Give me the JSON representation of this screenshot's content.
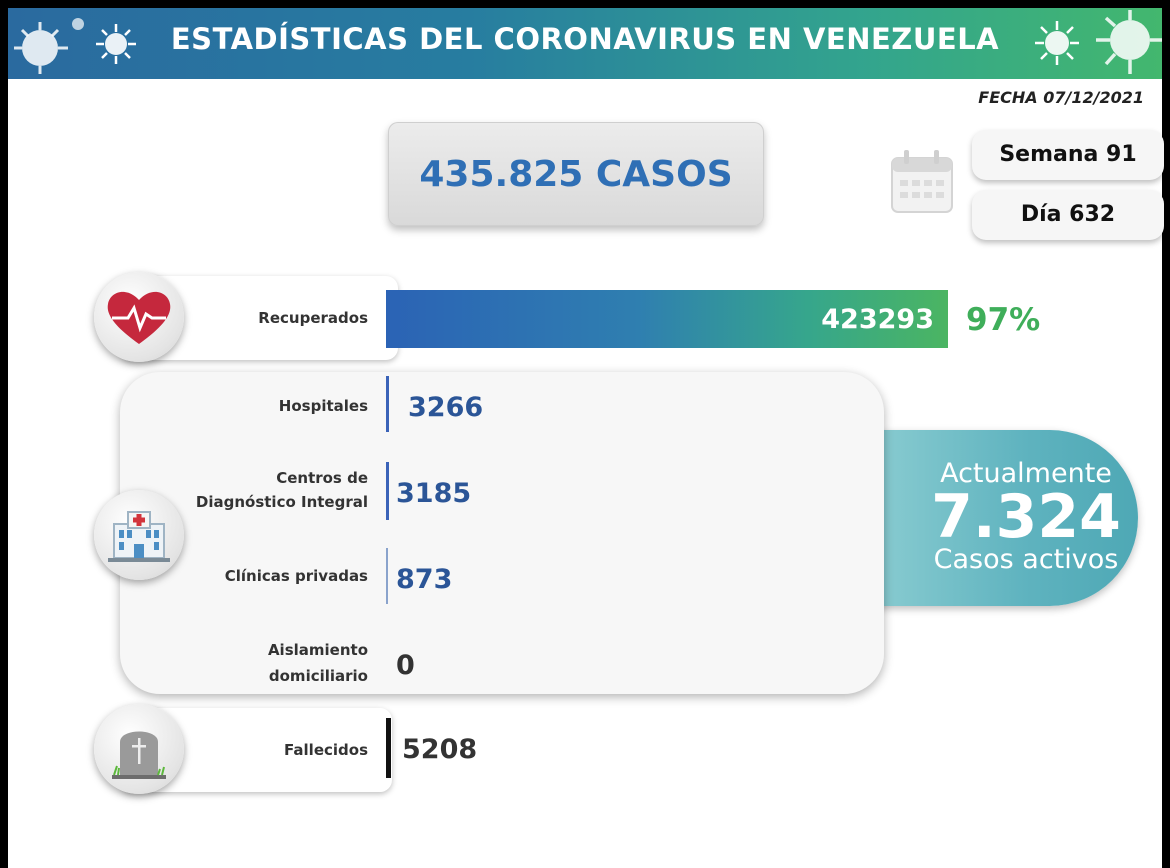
{
  "header": {
    "title": "ESTADÍSTICAS DEL CORONAVIRUS EN VENEZUELA"
  },
  "date": "FECHA 07/12/2021",
  "total": "435.825 CASOS",
  "week": "Semana 91",
  "day": "Día 632",
  "recovered": {
    "label": "Recuperados",
    "value": "423293",
    "percent": "97%"
  },
  "hospitals": {
    "label": "Hospitales",
    "value": "3266"
  },
  "cdi": {
    "label_line1": "Centros de",
    "label_line2": "Diagnóstico Integral",
    "value": "3185"
  },
  "private_clinics": {
    "label": "Clínicas privadas",
    "value": "873"
  },
  "home_isolation": {
    "label_line1": "Aislamiento",
    "label_line2": "domiciliario",
    "value": "0"
  },
  "deaths": {
    "label": "Fallecidos",
    "value": "5208"
  },
  "active": {
    "line1": "Actualmente",
    "value": "7.324",
    "line2": "Casos activos"
  },
  "colors": {
    "accent_blue": "#2f6fb5",
    "accent_green": "#3fae5a",
    "active_teal": "#5fb3bf"
  }
}
